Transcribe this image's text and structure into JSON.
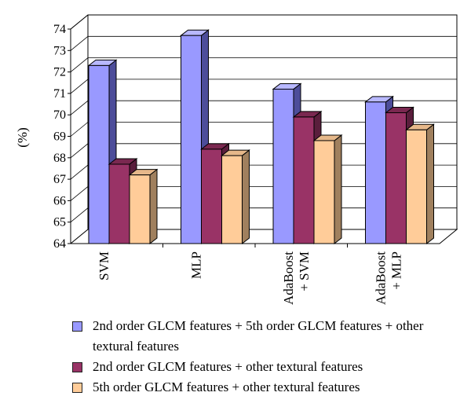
{
  "chart_data": {
    "type": "bar",
    "ylabel": "(%)",
    "ylim": [
      64,
      74
    ],
    "yticks": [
      64,
      65,
      66,
      67,
      68,
      69,
      70,
      71,
      72,
      73,
      74
    ],
    "categories": [
      "SVM",
      "MLP",
      "AdaBoost\n+ SVM",
      "AdaBoost\n+ MLP"
    ],
    "series": [
      {
        "name": "2nd order GLCM features + 5th order GLCM features + other textural features",
        "values": [
          72.3,
          73.7,
          71.2,
          70.6
        ]
      },
      {
        "name": "2nd order GLCM features + other textural features",
        "values": [
          67.7,
          68.4,
          69.9,
          70.1
        ]
      },
      {
        "name": "5th order GLCM features + other textural features",
        "values": [
          67.2,
          68.1,
          68.8,
          69.3
        ]
      }
    ],
    "grid": true,
    "legend_position": "bottom",
    "colors": {
      "series": [
        "#9999ff",
        "#993366",
        "#ffcc99"
      ],
      "series_side": [
        "#4d4d9a",
        "#5a1e3c",
        "#a0805e"
      ],
      "series_top": [
        "#b8b8ff",
        "#7a2850",
        "#e6b88a"
      ]
    }
  }
}
